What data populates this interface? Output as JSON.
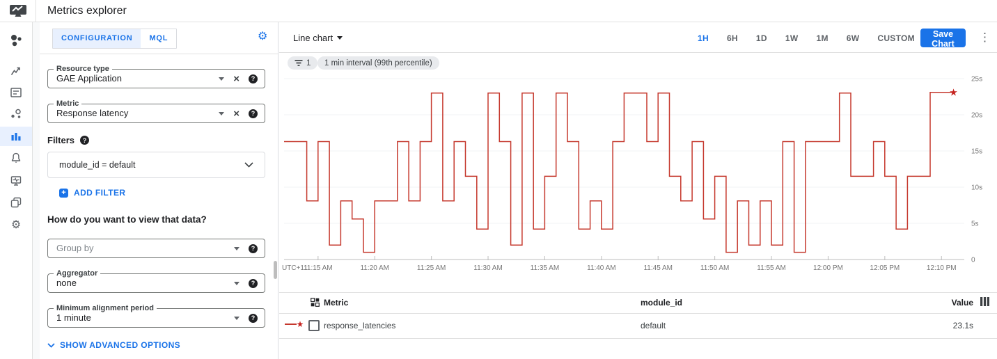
{
  "header": {
    "title": "Metrics explorer"
  },
  "icons": {
    "gear": "⚙",
    "dots": "⋮",
    "star": "★",
    "help": "?",
    "clear": "×",
    "plus": "+"
  },
  "colors": {
    "accent_blue": "#1a73e8",
    "light_blue_bg": "#e8f0fe",
    "line_red": "#c5382d",
    "star_red": "#c5221f"
  },
  "sidebar": {
    "items": [
      "overview",
      "metrics",
      "dashboards",
      "services",
      "metrics-explorer",
      "alerting",
      "uptime-checks",
      "groups",
      "settings"
    ],
    "selected": "metrics-explorer"
  },
  "config_panel": {
    "tabs": [
      {
        "label": "CONFIGURATION",
        "selected": true
      },
      {
        "label": "MQL",
        "selected": false
      }
    ],
    "resource_type": {
      "label": "Resource type",
      "value": "GAE Application"
    },
    "metric": {
      "label": "Metric",
      "value": "Response latency"
    },
    "filters_label": "Filters",
    "filter_value": "module_id = default",
    "add_filter_label": "ADD FILTER",
    "view_heading": "How do you want to view that data?",
    "group_by_placeholder": "Group by",
    "aggregator": {
      "label": "Aggregator",
      "value": "none"
    },
    "min_alignment": {
      "label": "Minimum alignment period",
      "value": "1 minute"
    },
    "advanced_label": "SHOW ADVANCED OPTIONS"
  },
  "chart_panel": {
    "chart_type_label": "Line chart",
    "time_ranges": [
      "1H",
      "6H",
      "1D",
      "1W",
      "1M",
      "6W",
      "CUSTOM"
    ],
    "selected_range": "1H",
    "save_button": "Save Chart",
    "chips": [
      {
        "icon": "filter",
        "label": "1"
      },
      {
        "label": "1 min interval (99th percentile)"
      }
    ]
  },
  "chart_data": {
    "type": "line",
    "subtype": "step",
    "x_timezone_label": "UTC+11",
    "x_start": "11:12 AM",
    "interval_minutes": 1,
    "x_tick_labels": [
      "11:15 AM",
      "11:20 AM",
      "11:25 AM",
      "11:30 AM",
      "11:35 AM",
      "11:40 AM",
      "11:45 AM",
      "11:50 AM",
      "11:55 AM",
      "12:00 PM",
      "12:05 PM",
      "12:10 PM"
    ],
    "y_tick_values": [
      25,
      20,
      15,
      10,
      5,
      0
    ],
    "y_tick_labels": [
      "25s",
      "20s",
      "15s",
      "10s",
      "5s",
      "0"
    ],
    "ylim": [
      0,
      26
    ],
    "unit": "seconds",
    "grid": true,
    "legend_position": "table-below",
    "series": [
      {
        "name": "response_latencies",
        "color": "#c5382d",
        "end_marker": "star",
        "values": [
          16.3,
          16.3,
          8.1,
          16.3,
          2,
          8.1,
          5.6,
          1,
          8.1,
          8.1,
          16.3,
          8.1,
          16.3,
          23,
          8.1,
          16.3,
          11.5,
          4.2,
          23,
          16.3,
          2,
          23,
          4.2,
          11.5,
          23,
          16.3,
          4.2,
          8.1,
          4.2,
          16.3,
          23,
          23,
          16.3,
          23,
          11.5,
          8.1,
          16.3,
          5.6,
          11.5,
          1,
          8.1,
          2,
          8.1,
          2,
          16.3,
          1,
          16.3,
          16.3,
          16.3,
          23,
          11.5,
          11.5,
          16.3,
          11.5,
          4.2,
          11.5,
          11.5,
          23.1,
          23.1,
          23.1
        ]
      }
    ],
    "latest_value": "23.1s"
  },
  "table": {
    "columns": [
      "Metric",
      "module_id",
      "Value"
    ],
    "rows": [
      {
        "metric": "response_latencies",
        "module_id": "default",
        "value": "23.1s"
      }
    ]
  }
}
